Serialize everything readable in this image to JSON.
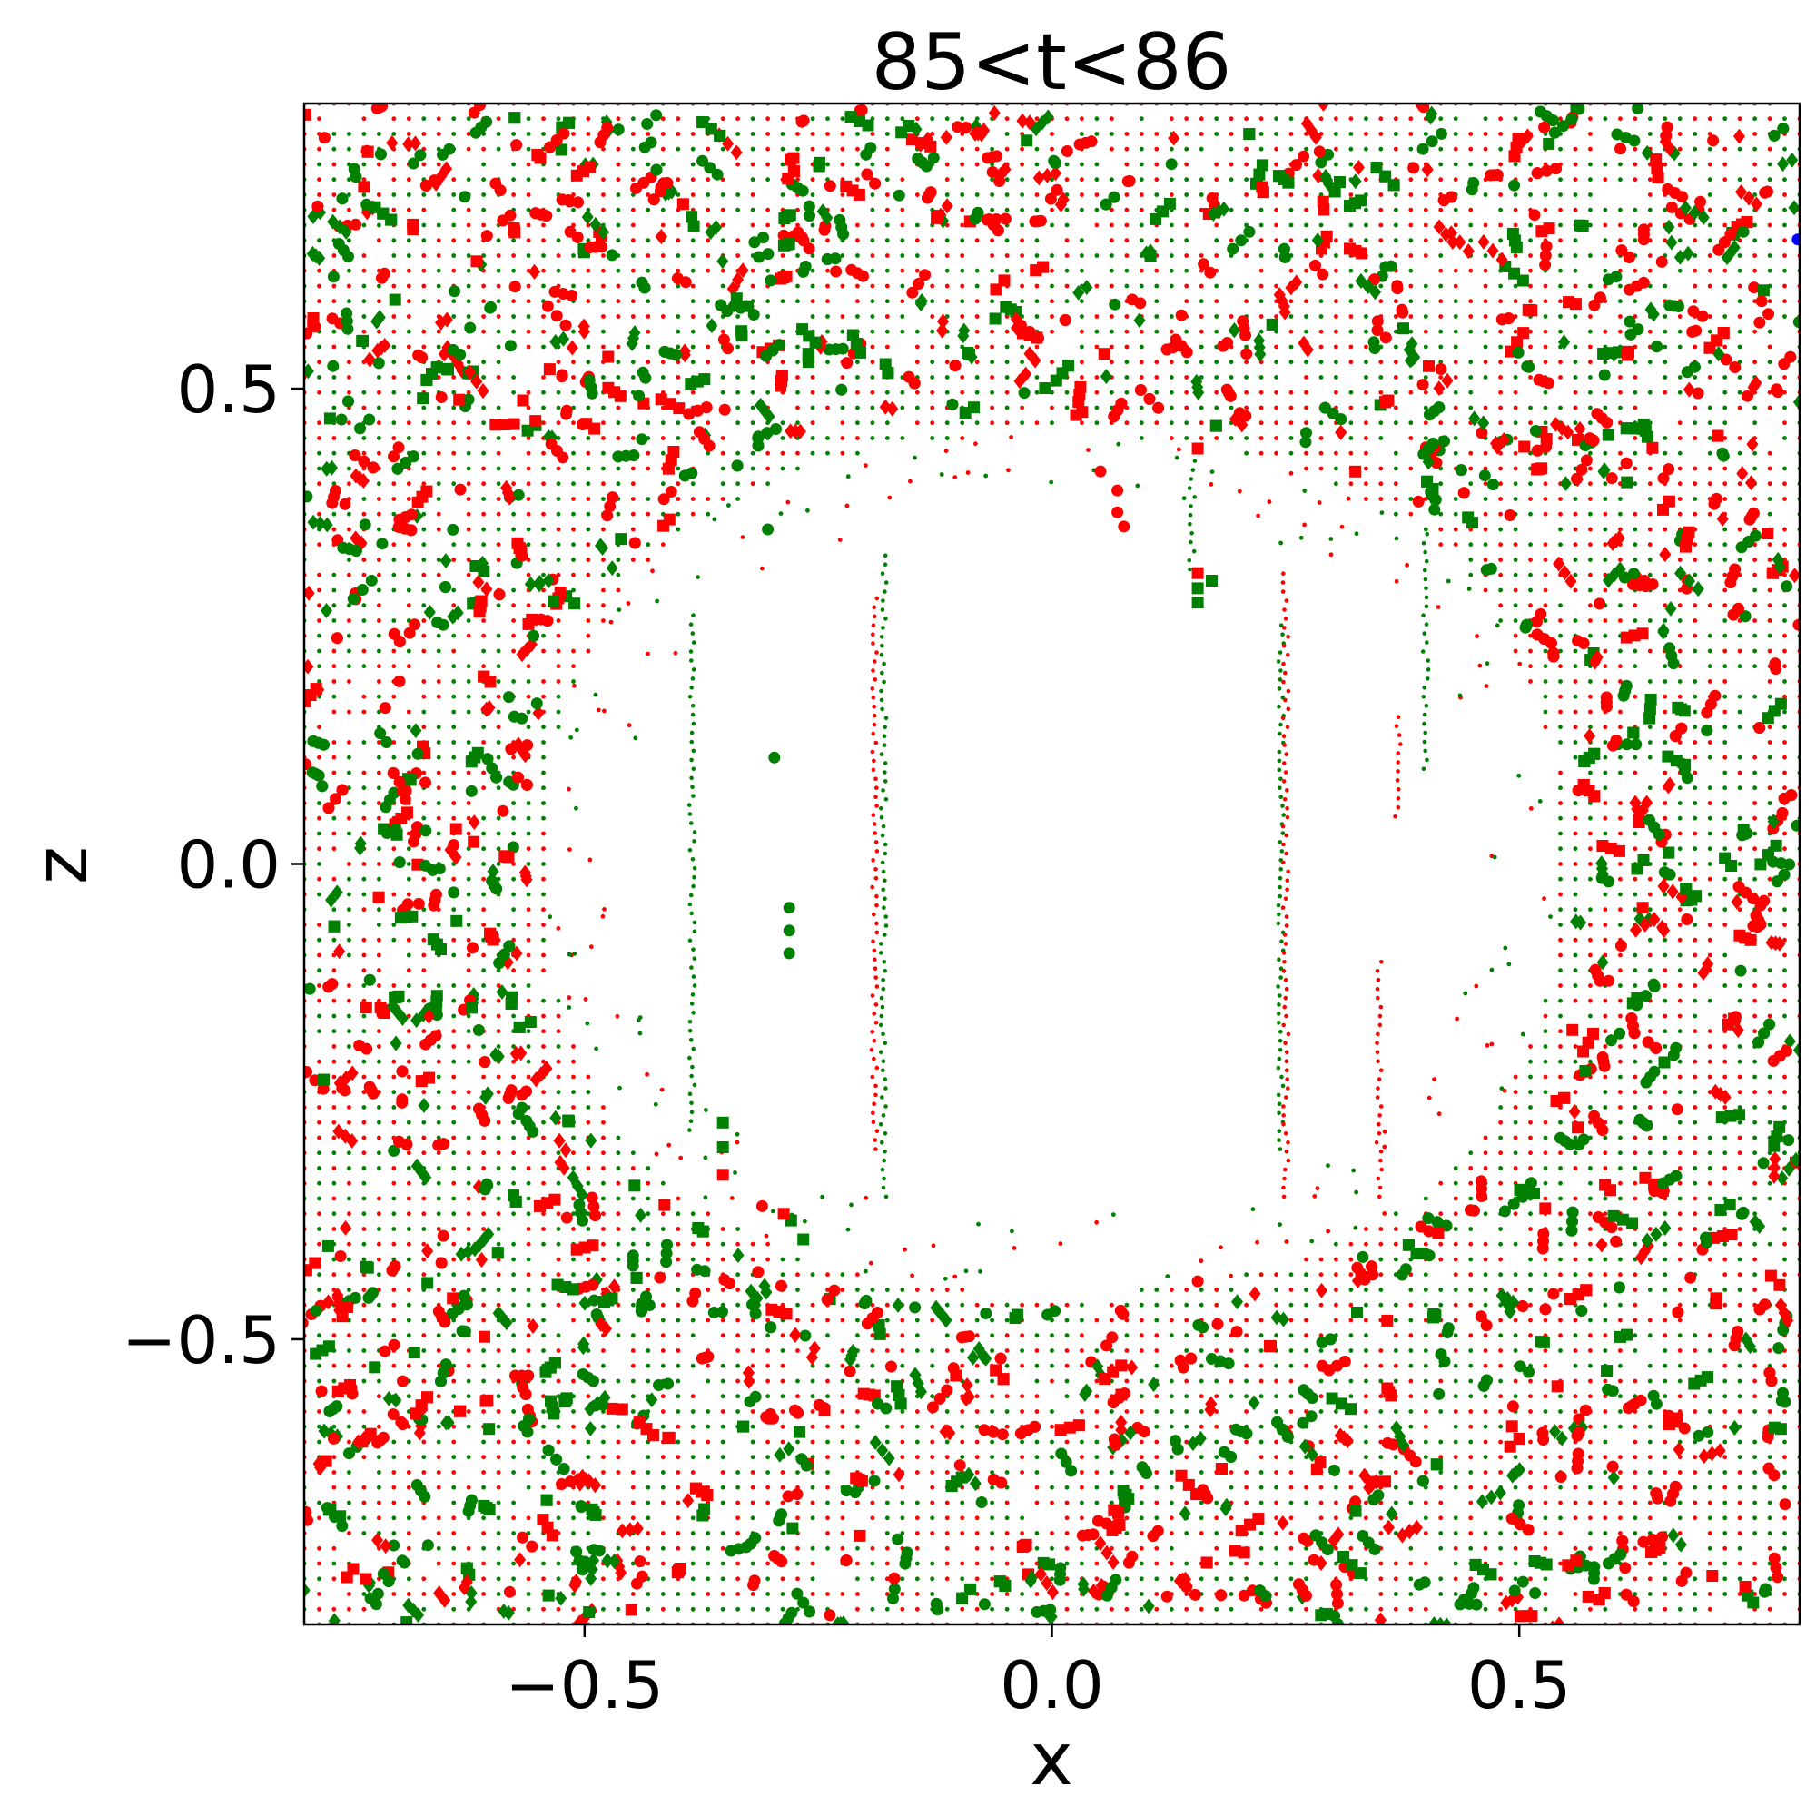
{
  "chart_data": {
    "type": "scatter",
    "title": "85<t<86",
    "xlabel": "x",
    "ylabel": "z",
    "xlim": [
      -0.8,
      0.8
    ],
    "ylim": [
      -0.8,
      0.8
    ],
    "xticks": [
      {
        "value": -0.5,
        "label": "−0.5"
      },
      {
        "value": 0.0,
        "label": "0.0"
      },
      {
        "value": 0.5,
        "label": "0.5"
      }
    ],
    "yticks": [
      {
        "value": 0.5,
        "label": "0.5"
      },
      {
        "value": 0.0,
        "label": "0.0"
      },
      {
        "value": -0.5,
        "label": "−0.5"
      }
    ],
    "grid": false,
    "legend": null,
    "colors": {
      "red": "#ff0000",
      "green": "#008000",
      "blue": "#0000ff"
    },
    "background_lattice": {
      "description": "dense lattice of small red/green particles filling domain except central void",
      "x_range": [
        -0.8,
        0.8
      ],
      "z_range": [
        -0.8,
        0.8
      ],
      "spacing": 0.016,
      "void": {
        "center": [
          0.0,
          0.0
        ],
        "half_width": 0.54,
        "half_height": 0.45
      }
    },
    "streaks": [
      {
        "x": -0.385,
        "z_range": [
          -0.28,
          0.27
        ],
        "color": "#008000"
      },
      {
        "x": -0.18,
        "z_range": [
          -0.35,
          0.33
        ],
        "color": "#008000"
      },
      {
        "x": -0.19,
        "z_range": [
          -0.3,
          0.28
        ],
        "color": "#ff0000"
      },
      {
        "x": 0.15,
        "z_range": [
          0.31,
          0.43
        ],
        "color": "#008000"
      },
      {
        "x": 0.245,
        "z_range": [
          -0.3,
          0.26
        ],
        "color": "#008000"
      },
      {
        "x": 0.25,
        "z_range": [
          -0.35,
          0.31
        ],
        "color": "#ff0000"
      },
      {
        "x": 0.35,
        "z_range": [
          -0.35,
          -0.1
        ],
        "color": "#ff0000"
      },
      {
        "x": 0.37,
        "z_range": [
          0.05,
          0.16
        ],
        "color": "#ff0000"
      },
      {
        "x": 0.4,
        "z_range": [
          0.1,
          0.35
        ],
        "color": "#008000"
      }
    ],
    "series": [
      {
        "color": "#008000",
        "marker": "circle",
        "points": [
          [
            -0.297,
            0.112
          ],
          [
            -0.281,
            -0.046
          ],
          [
            -0.281,
            -0.07
          ],
          [
            -0.281,
            -0.094
          ],
          [
            -0.304,
            0.352
          ],
          [
            -0.551,
            0.169
          ],
          [
            -0.67,
            0.035
          ],
          [
            -0.655,
            -0.005
          ],
          [
            -0.64,
            -0.03
          ]
        ]
      },
      {
        "color": "#008000",
        "marker": "square",
        "points": [
          [
            -0.352,
            -0.272
          ],
          [
            -0.352,
            -0.298
          ],
          [
            -0.279,
            -0.375
          ],
          [
            -0.266,
            -0.395
          ],
          [
            0.156,
            0.275
          ],
          [
            0.171,
            0.298
          ],
          [
            0.156,
            0.29
          ],
          [
            -0.637,
            -0.06
          ]
        ]
      },
      {
        "color": "#ff0000",
        "marker": "circle",
        "points": [
          [
            0.052,
            0.413
          ],
          [
            0.07,
            0.393
          ],
          [
            0.07,
            0.37
          ],
          [
            0.077,
            0.355
          ],
          [
            -0.31,
            -0.36
          ],
          [
            0.156,
            -0.439
          ],
          [
            0.609,
            -0.086
          ],
          [
            -0.64,
            0.02
          ]
        ]
      },
      {
        "color": "#ff0000",
        "marker": "square",
        "points": [
          [
            0.156,
            0.437
          ],
          [
            0.156,
            0.306
          ],
          [
            -0.352,
            -0.327
          ],
          [
            -0.287,
            -0.368
          ],
          [
            0.632,
            -0.046
          ]
        ]
      },
      {
        "color": "#0000ff",
        "marker": "circle",
        "points": [
          [
            0.798,
            0.657
          ]
        ]
      }
    ],
    "scattered_points_note": "additional dense cloud of larger red/green circle, square and diamond markers fills the region outside the central void"
  }
}
